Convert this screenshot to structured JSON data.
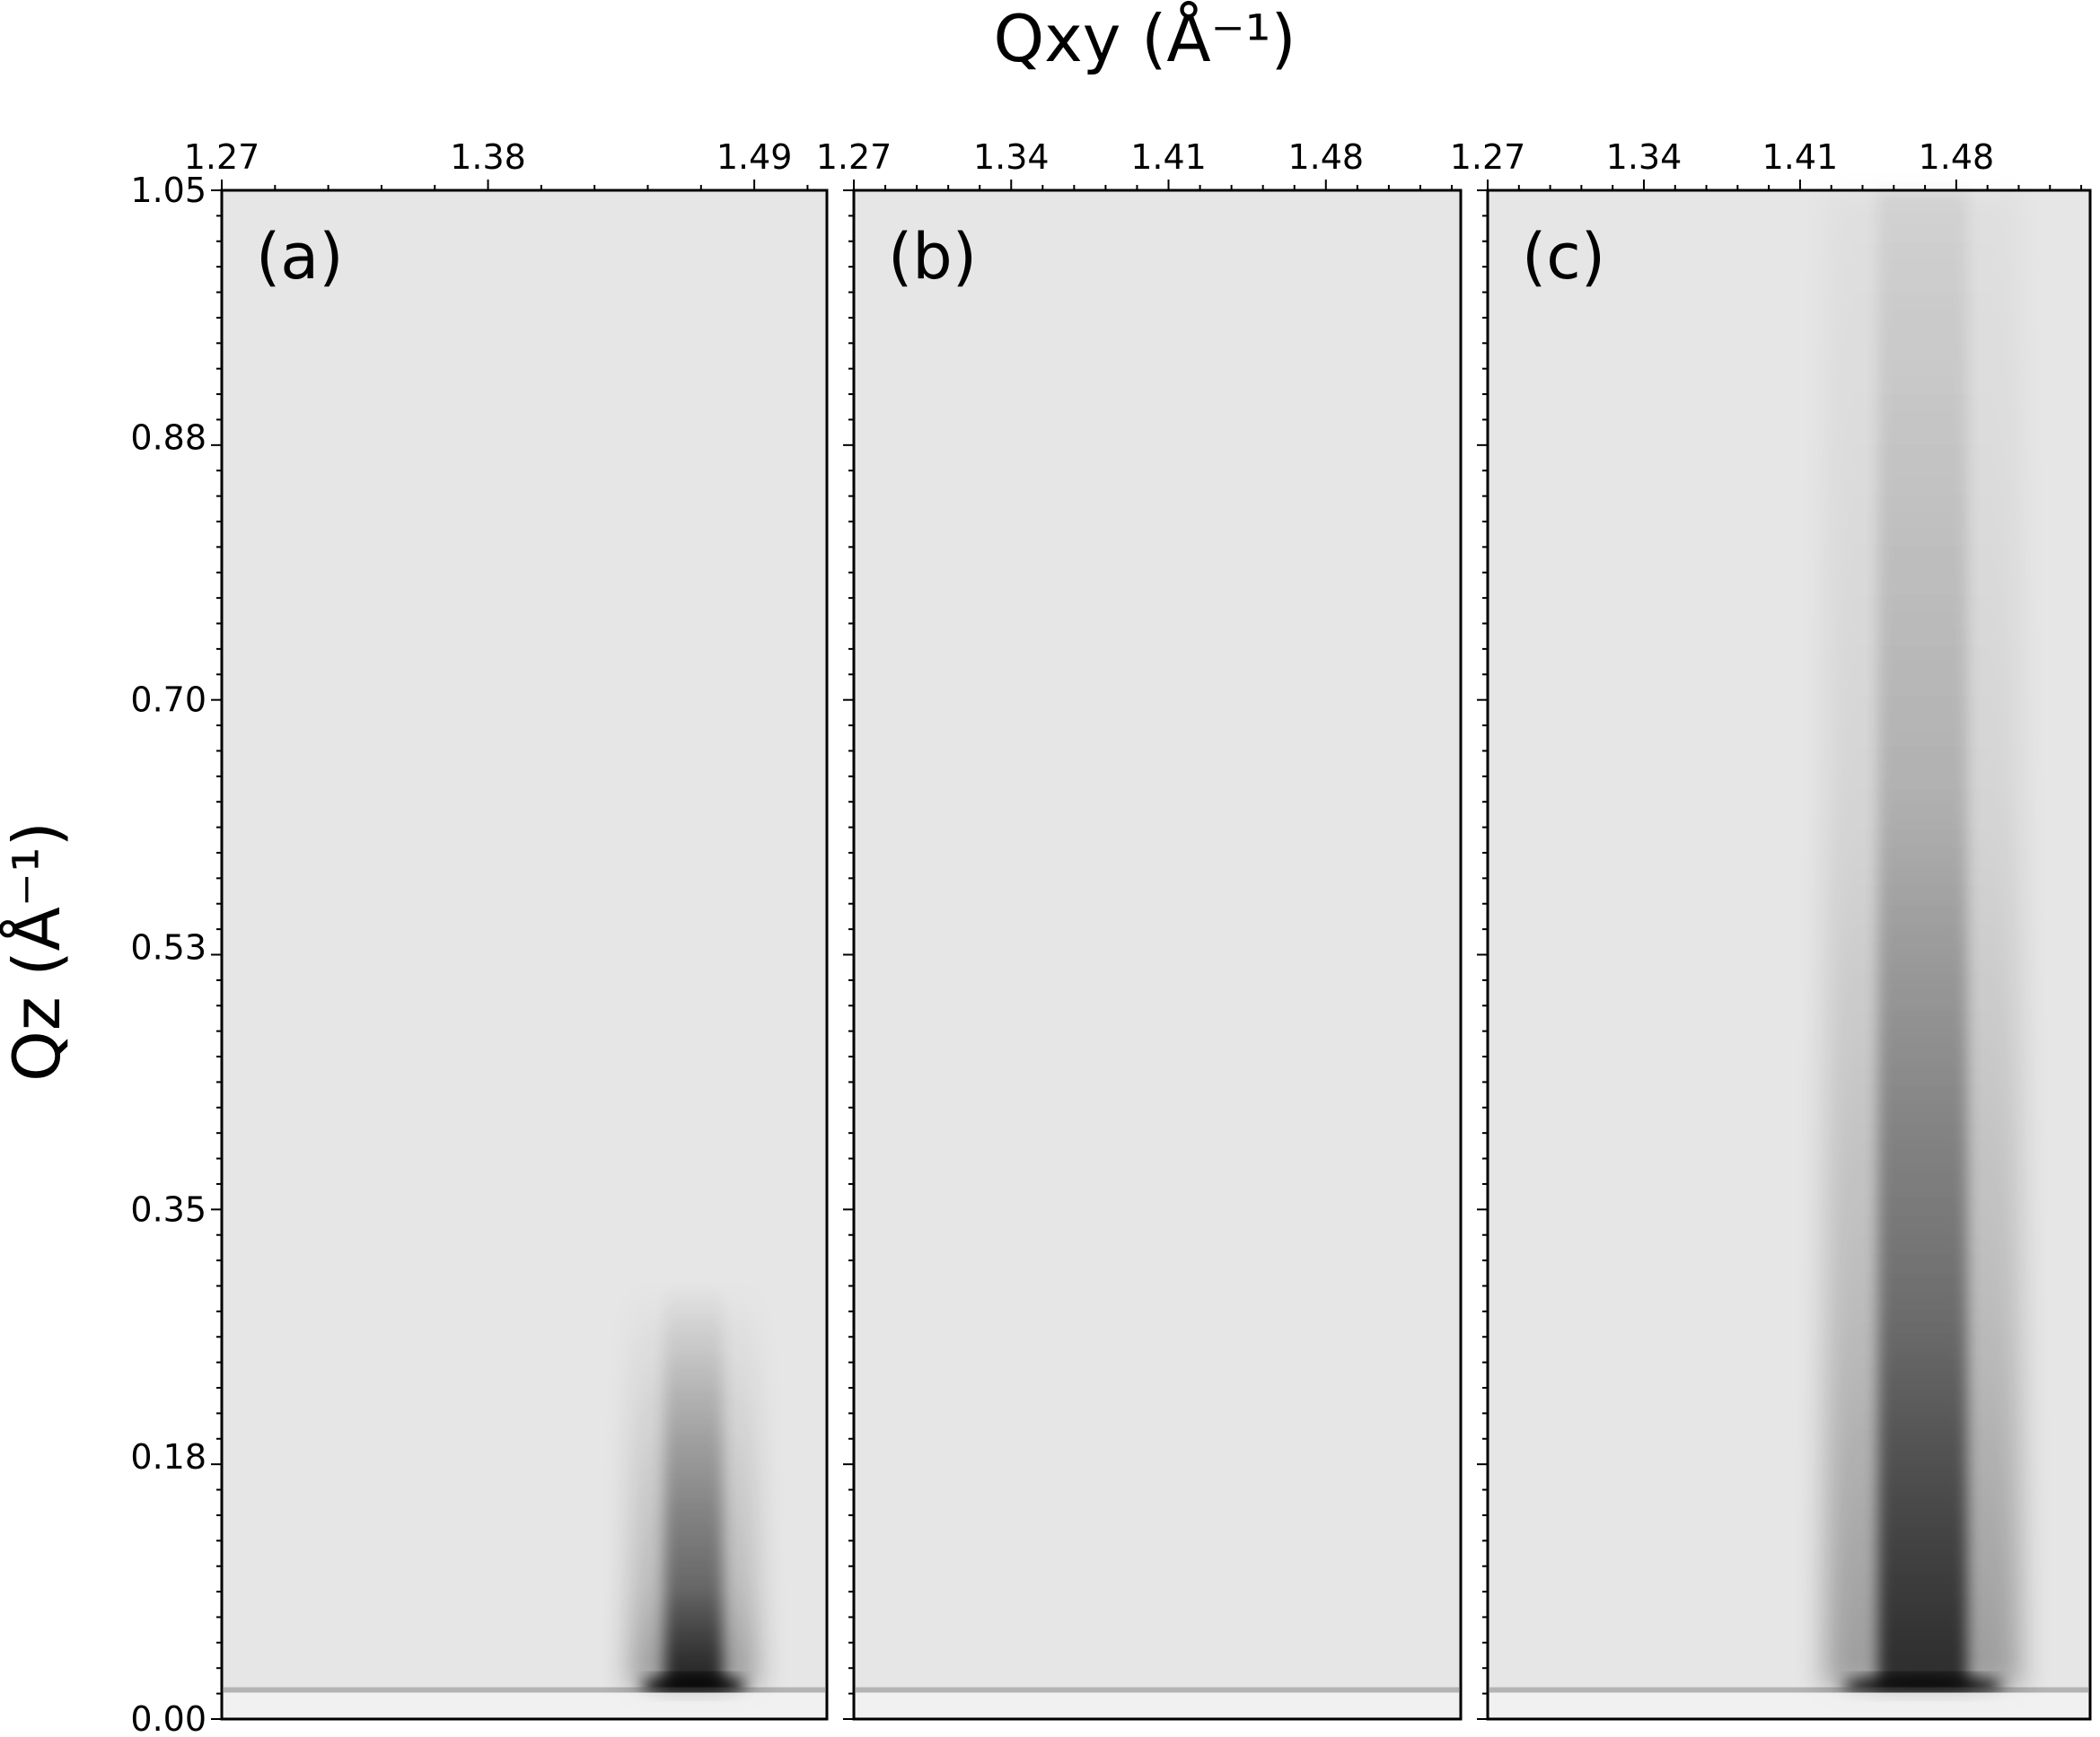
{
  "chart_data": {
    "type": "heatmap",
    "title": "",
    "xlabel": "Qxy (Å⁻¹)",
    "ylabel": "Qz (Å⁻¹)",
    "colormap": "greys",
    "background_color": "#e6e6e6",
    "shared_y": {
      "ylim": [
        0.0,
        1.05
      ],
      "ticks": [
        0.0,
        0.18,
        0.35,
        0.53,
        0.7,
        0.88,
        1.05
      ],
      "tick_labels": [
        "0.00",
        "0.18",
        "0.35",
        "0.53",
        "0.70",
        "0.88",
        "1.05"
      ]
    },
    "panels": [
      {
        "label": "(a)",
        "xlim": [
          1.27,
          1.52
        ],
        "ticks": [
          1.27,
          1.38,
          1.49
        ],
        "tick_labels": [
          "1.27",
          "1.38",
          "1.49"
        ],
        "features": [
          {
            "kind": "peak",
            "qxy": 1.465,
            "qz_min": 0.02,
            "qz_max": 0.3,
            "intensity": 1.0,
            "width": 0.012
          }
        ],
        "horizon_line_qz": 0.02
      },
      {
        "label": "(b)",
        "xlim": [
          1.27,
          1.54
        ],
        "ticks": [
          1.27,
          1.34,
          1.41,
          1.48
        ],
        "tick_labels": [
          "1.27",
          "1.34",
          "1.41",
          "1.48"
        ],
        "features": [],
        "horizon_line_qz": 0.02
      },
      {
        "label": "(c)",
        "xlim": [
          1.27,
          1.54
        ],
        "ticks": [
          1.27,
          1.34,
          1.41,
          1.48
        ],
        "tick_labels": [
          "1.27",
          "1.34",
          "1.41",
          "1.48"
        ],
        "features": [
          {
            "kind": "peak",
            "qxy": 1.465,
            "qz_min": 0.02,
            "qz_max": 1.05,
            "intensity": 0.95,
            "width": 0.02
          }
        ],
        "horizon_line_qz": 0.02
      }
    ]
  }
}
